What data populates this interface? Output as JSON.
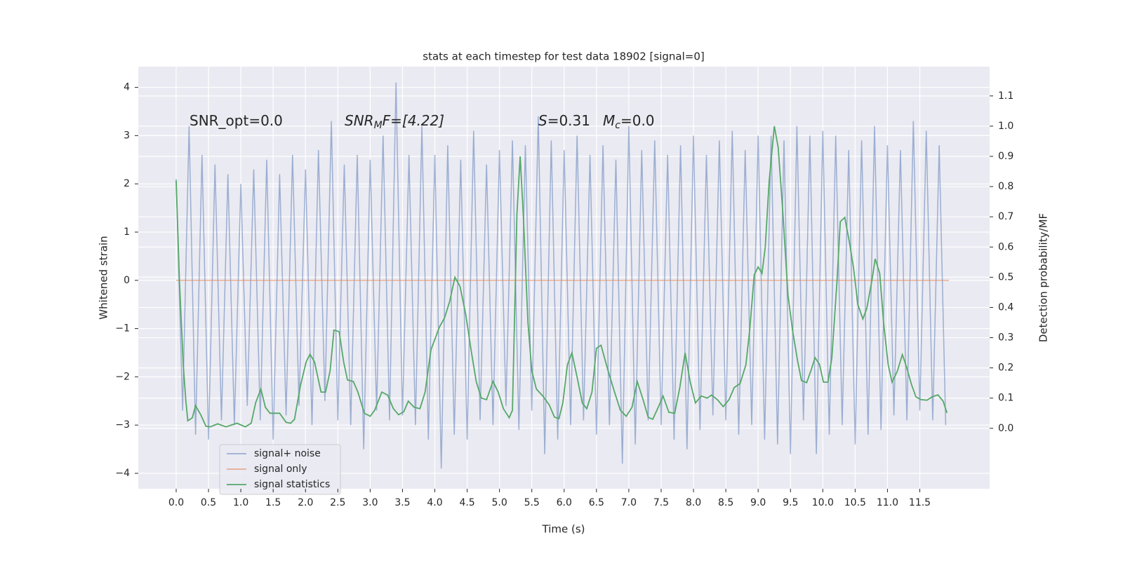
{
  "chart_data": {
    "type": "line",
    "title": "stats at each timestep for test data 18902 [signal=0]",
    "xlabel": "Time (s)",
    "ylabel": "Whitened strain",
    "y2label": "Detection probability/MF",
    "annotations": [
      {
        "text": "SNR_opt=0.0"
      },
      {
        "italic": "SNR",
        "sub": "M",
        "text": "F=[4.22]"
      },
      {
        "italic": "S",
        "text": "=0.31"
      },
      {
        "italic": "M",
        "sub": "c",
        "text": "=0.0"
      }
    ],
    "xlim": [
      -0.586,
      12.58
    ],
    "ylim": [
      -4.32,
      4.43
    ],
    "y2lim": [
      -0.2,
      1.197
    ],
    "xticks": [
      {
        "value": 0,
        "label": "0.0"
      },
      {
        "value": 0.5,
        "label": "0.5"
      },
      {
        "value": 1,
        "label": "1.0"
      },
      {
        "value": 1.5,
        "label": "1.5"
      },
      {
        "value": 2,
        "label": "2.0"
      },
      {
        "value": 2.5,
        "label": "2.5"
      },
      {
        "value": 3,
        "label": "3.0"
      },
      {
        "value": 3.5,
        "label": "3.5"
      },
      {
        "value": 4,
        "label": "4.0"
      },
      {
        "value": 4.5,
        "label": "4.5"
      },
      {
        "value": 5,
        "label": "5.0"
      },
      {
        "value": 5.5,
        "label": "5.5"
      },
      {
        "value": 6,
        "label": "6.0"
      },
      {
        "value": 6.5,
        "label": "6.5"
      },
      {
        "value": 7,
        "label": "7.0"
      },
      {
        "value": 7.5,
        "label": "7.5"
      },
      {
        "value": 8,
        "label": "8.0"
      },
      {
        "value": 8.5,
        "label": "8.5"
      },
      {
        "value": 9,
        "label": "9.0"
      },
      {
        "value": 9.5,
        "label": "9.5"
      },
      {
        "value": 10,
        "label": "10.0"
      },
      {
        "value": 10.5,
        "label": "10.5"
      },
      {
        "value": 11,
        "label": "11.0"
      },
      {
        "value": 11.5,
        "label": "11.5"
      }
    ],
    "yticks": [
      {
        "value": -4,
        "label": "−4"
      },
      {
        "value": -3,
        "label": "−3"
      },
      {
        "value": -2,
        "label": "−2"
      },
      {
        "value": -1,
        "label": "−1"
      },
      0,
      1,
      2,
      3,
      4
    ],
    "y2ticks": [
      {
        "value": 0,
        "label": "0.0"
      },
      {
        "value": 0.1,
        "label": "0.1"
      },
      {
        "value": 0.2,
        "label": "0.2"
      },
      {
        "value": 0.3,
        "label": "0.3"
      },
      {
        "value": 0.4,
        "label": "0.4"
      },
      {
        "value": 0.5,
        "label": "0.5"
      },
      {
        "value": 0.6,
        "label": "0.6"
      },
      {
        "value": 0.7,
        "label": "0.7"
      },
      {
        "value": 0.8,
        "label": "0.8"
      },
      {
        "value": 0.9,
        "label": "0.9"
      },
      {
        "value": 1,
        "label": "1.0"
      },
      {
        "value": 1.1,
        "label": "1.1"
      }
    ],
    "grid": true,
    "legend": "lower left",
    "series": [
      {
        "name": "signal+ noise",
        "color": "#4c72b0",
        "opacity": 0.5,
        "x": [
          0,
          0.1,
          0.2,
          0.3,
          0.4,
          0.5,
          0.6,
          0.7,
          0.8,
          0.9,
          1,
          1.1,
          1.2,
          1.3,
          1.4,
          1.5,
          1.6,
          1.7,
          1.8,
          1.9,
          2,
          2.1,
          2.2,
          2.3,
          2.4,
          2.5,
          2.6,
          2.7,
          2.8,
          2.9,
          3,
          3.1,
          3.2,
          3.3,
          3.4,
          3.5,
          3.6,
          3.7,
          3.8,
          3.9,
          4,
          4.1,
          4.2,
          4.3,
          4.4,
          4.5,
          4.6,
          4.7,
          4.8,
          4.9,
          5,
          5.1,
          5.2,
          5.3,
          5.4,
          5.5,
          5.6,
          5.7,
          5.8,
          5.9,
          6,
          6.1,
          6.2,
          6.3,
          6.4,
          6.5,
          6.6,
          6.7,
          6.8,
          6.9,
          7,
          7.1,
          7.2,
          7.3,
          7.4,
          7.5,
          7.6,
          7.7,
          7.8,
          7.9,
          8,
          8.1,
          8.2,
          8.3,
          8.4,
          8.5,
          8.6,
          8.7,
          8.8,
          8.9,
          9,
          9.1,
          9.2,
          9.3,
          9.4,
          9.5,
          9.6,
          9.7,
          9.8,
          9.9,
          10,
          10.1,
          10.2,
          10.3,
          10.4,
          10.5,
          10.6,
          10.7,
          10.8,
          10.9,
          11,
          11.1,
          11.2,
          11.3,
          11.4,
          11.5,
          11.6,
          11.7,
          11.8,
          11.9
        ],
        "values": [
          2.1,
          -2.7,
          3.2,
          -3.2,
          2.6,
          -3.3,
          2.4,
          -2.9,
          2.2,
          -3.0,
          2.0,
          -2.6,
          2.3,
          -2.9,
          2.5,
          -3.3,
          2.2,
          -2.8,
          2.6,
          -2.6,
          2.3,
          -3.0,
          2.7,
          -2.5,
          3.3,
          -2.9,
          2.4,
          -3.0,
          2.6,
          -3.5,
          2.5,
          -2.7,
          3.0,
          -2.9,
          4.1,
          -2.8,
          2.6,
          -3.0,
          3.2,
          -3.3,
          2.6,
          -3.9,
          2.8,
          -3.2,
          2.5,
          -3.3,
          3.1,
          -2.9,
          2.4,
          -3.0,
          2.7,
          -2.6,
          2.9,
          -3.1,
          2.8,
          -2.7,
          3.4,
          -3.6,
          2.9,
          -3.3,
          2.7,
          -3.0,
          3.0,
          -2.9,
          2.6,
          -3.2,
          2.8,
          -3.0,
          2.5,
          -3.8,
          3.2,
          -3.4,
          2.7,
          -2.9,
          2.9,
          -3.0,
          2.6,
          -3.3,
          2.8,
          -3.5,
          3.0,
          -3.1,
          2.6,
          -2.8,
          2.9,
          -2.9,
          3.1,
          -3.2,
          2.7,
          -3.0,
          3.0,
          -3.3,
          3.0,
          -3.4,
          2.9,
          -3.6,
          3.2,
          -2.9,
          3.0,
          -3.6,
          3.1,
          -3.2,
          3.0,
          -3.0,
          2.7,
          -3.4,
          2.9,
          -3.2,
          3.2,
          -3.1,
          2.8,
          -2.8,
          2.7,
          -2.9,
          3.3,
          -2.7,
          3.1,
          -2.9,
          2.8,
          -3.0
        ]
      },
      {
        "name": "signal only",
        "color": "#dd8452",
        "opacity": 0.6,
        "x": [
          0,
          11.95
        ],
        "values": [
          0,
          0
        ]
      },
      {
        "name": "signal statistics",
        "color": "#55a868",
        "axis": "y2",
        "x": [
          0,
          0.05,
          0.11,
          0.15,
          0.18,
          0.25,
          0.3,
          0.38,
          0.46,
          0.53,
          0.64,
          0.77,
          0.94,
          1.07,
          1.16,
          1.23,
          1.31,
          1.38,
          1.45,
          1.6,
          1.7,
          1.77,
          1.83,
          1.92,
          2.01,
          2.07,
          2.14,
          2.24,
          2.31,
          2.38,
          2.44,
          2.52,
          2.59,
          2.65,
          2.74,
          2.81,
          2.91,
          3.0,
          3.07,
          3.18,
          3.27,
          3.36,
          3.44,
          3.52,
          3.59,
          3.68,
          3.77,
          3.85,
          3.94,
          4.07,
          4.15,
          4.23,
          4.31,
          4.39,
          4.48,
          4.56,
          4.64,
          4.72,
          4.8,
          4.9,
          4.98,
          5.06,
          5.15,
          5.2,
          5.27,
          5.32,
          5.37,
          5.44,
          5.5,
          5.57,
          5.67,
          5.77,
          5.85,
          5.92,
          5.98,
          6.05,
          6.12,
          6.2,
          6.28,
          6.35,
          6.43,
          6.5,
          6.57,
          6.68,
          6.78,
          6.87,
          6.96,
          7.05,
          7.13,
          7.22,
          7.3,
          7.37,
          7.46,
          7.53,
          7.62,
          7.71,
          7.79,
          7.87,
          7.95,
          8.03,
          8.12,
          8.21,
          8.28,
          8.37,
          8.46,
          8.55,
          8.63,
          8.72,
          8.81,
          8.87,
          8.94,
          9.0,
          9.06,
          9.11,
          9.17,
          9.25,
          9.31,
          9.38,
          9.46,
          9.53,
          9.61,
          9.67,
          9.75,
          9.82,
          9.88,
          9.95,
          10.01,
          10.08,
          10.14,
          10.22,
          10.27,
          10.34,
          10.41,
          10.48,
          10.54,
          10.62,
          10.68,
          10.76,
          10.81,
          10.88,
          10.94,
          11.01,
          11.07,
          11.15,
          11.23,
          11.29,
          11.37,
          11.44,
          11.52,
          11.61,
          11.69,
          11.78,
          11.86,
          11.92
        ],
        "values": [
          0.82,
          0.49,
          0.21,
          0.09,
          0.025,
          0.035,
          0.075,
          0.045,
          0.007,
          0.005,
          0.015,
          0.005,
          0.017,
          0.005,
          0.017,
          0.085,
          0.13,
          0.07,
          0.05,
          0.05,
          0.02,
          0.017,
          0.03,
          0.14,
          0.22,
          0.245,
          0.22,
          0.12,
          0.12,
          0.19,
          0.325,
          0.32,
          0.22,
          0.16,
          0.155,
          0.12,
          0.05,
          0.04,
          0.06,
          0.12,
          0.11,
          0.065,
          0.045,
          0.055,
          0.09,
          0.07,
          0.065,
          0.12,
          0.26,
          0.335,
          0.365,
          0.42,
          0.5,
          0.47,
          0.375,
          0.26,
          0.155,
          0.1,
          0.095,
          0.155,
          0.12,
          0.065,
          0.035,
          0.06,
          0.71,
          0.9,
          0.7,
          0.35,
          0.19,
          0.13,
          0.107,
          0.077,
          0.037,
          0.032,
          0.084,
          0.21,
          0.25,
          0.17,
          0.084,
          0.065,
          0.12,
          0.265,
          0.275,
          0.19,
          0.12,
          0.06,
          0.04,
          0.07,
          0.155,
          0.095,
          0.037,
          0.03,
          0.072,
          0.107,
          0.053,
          0.05,
          0.137,
          0.25,
          0.153,
          0.084,
          0.107,
          0.1,
          0.11,
          0.095,
          0.072,
          0.095,
          0.135,
          0.148,
          0.21,
          0.327,
          0.508,
          0.534,
          0.513,
          0.6,
          0.815,
          1.0,
          0.93,
          0.72,
          0.443,
          0.327,
          0.223,
          0.158,
          0.151,
          0.193,
          0.234,
          0.211,
          0.153,
          0.153,
          0.234,
          0.49,
          0.684,
          0.698,
          0.617,
          0.524,
          0.41,
          0.362,
          0.397,
          0.49,
          0.561,
          0.513,
          0.35,
          0.211,
          0.153,
          0.188,
          0.244,
          0.206,
          0.146,
          0.104,
          0.095,
          0.093,
          0.104,
          0.111,
          0.09,
          0.051
        ]
      }
    ]
  }
}
